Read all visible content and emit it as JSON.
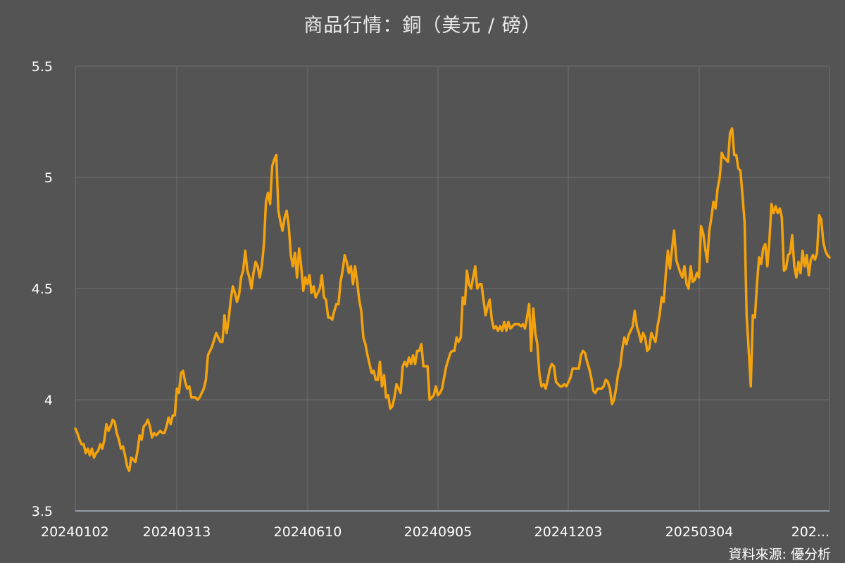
{
  "title": "商品行情：銅（美元 / 磅）",
  "source_label": "資料來源: 優分析",
  "colors": {
    "background": "#545454",
    "line": "#f5a30c",
    "grid": "#6e6e6e",
    "axis": "#a9b4c2",
    "text": "#ffffff"
  },
  "chart_data": {
    "type": "line",
    "title": "商品行情：銅（美元 / 磅）",
    "xlabel": "",
    "ylabel": "",
    "ylim": [
      3.5,
      5.5
    ],
    "yticks": [
      "3.5",
      "4",
      "4.5",
      "5",
      "5.5"
    ],
    "xtick_labels": [
      "20240102",
      "20240313",
      "20240610",
      "20240905",
      "20241203",
      "20250304",
      "202..."
    ],
    "grid": true,
    "series": [
      {
        "values": [
          3.87,
          3.85,
          3.82,
          3.8,
          3.8,
          3.76,
          3.78,
          3.75,
          3.78,
          3.74,
          3.76,
          3.77,
          3.8,
          3.78,
          3.82,
          3.89,
          3.86,
          3.88,
          3.91,
          3.9,
          3.85,
          3.82,
          3.78,
          3.79,
          3.75,
          3.7,
          3.68,
          3.74,
          3.73,
          3.72,
          3.77,
          3.84,
          3.82,
          3.88,
          3.89,
          3.91,
          3.88,
          3.83,
          3.85,
          3.84,
          3.85,
          3.86,
          3.85,
          3.85,
          3.88,
          3.92,
          3.89,
          3.93,
          3.93,
          4.05,
          4.03,
          4.12,
          4.13,
          4.08,
          4.05,
          4.06,
          4.01,
          4.01,
          4.01,
          4.0,
          4.01,
          4.03,
          4.05,
          4.09,
          4.2,
          4.22,
          4.24,
          4.27,
          4.3,
          4.28,
          4.26,
          4.26,
          4.38,
          4.3,
          4.36,
          4.45,
          4.51,
          4.48,
          4.44,
          4.47,
          4.55,
          4.58,
          4.67,
          4.58,
          4.55,
          4.5,
          4.57,
          4.62,
          4.6,
          4.55,
          4.6,
          4.7,
          4.89,
          4.93,
          4.88,
          5.05,
          5.08,
          5.1,
          4.85,
          4.8,
          4.76,
          4.82,
          4.85,
          4.78,
          4.65,
          4.6,
          4.66,
          4.55,
          4.68,
          4.6,
          4.49,
          4.55,
          4.52,
          4.56,
          4.48,
          4.51,
          4.46,
          4.48,
          4.5,
          4.56,
          4.46,
          4.45,
          4.37,
          4.37,
          4.36,
          4.4,
          4.43,
          4.43,
          4.53,
          4.58,
          4.65,
          4.62,
          4.57,
          4.6,
          4.52,
          4.6,
          4.53,
          4.45,
          4.4,
          4.28,
          4.25,
          4.2,
          4.16,
          4.12,
          4.13,
          4.09,
          4.09,
          4.17,
          4.06,
          4.11,
          4.01,
          4.02,
          3.96,
          3.97,
          4.01,
          4.07,
          4.05,
          4.03,
          4.15,
          4.17,
          4.15,
          4.19,
          4.16,
          4.2,
          4.16,
          4.22,
          4.22,
          4.25,
          4.15,
          4.15,
          4.15,
          4.0,
          4.01,
          4.02,
          4.06,
          4.02,
          4.03,
          4.05,
          4.1,
          4.15,
          4.18,
          4.21,
          4.22,
          4.22,
          4.28,
          4.26,
          4.28,
          4.46,
          4.43,
          4.58,
          4.52,
          4.5,
          4.55,
          4.6,
          4.5,
          4.52,
          4.52,
          4.45,
          4.38,
          4.42,
          4.45,
          4.36,
          4.32,
          4.33,
          4.31,
          4.33,
          4.31,
          4.35,
          4.31,
          4.35,
          4.32,
          4.33,
          4.34,
          4.34,
          4.34,
          4.33,
          4.34,
          4.32,
          4.37,
          4.43,
          4.22,
          4.41,
          4.3,
          4.25,
          4.11,
          4.06,
          4.07,
          4.05,
          4.09,
          4.14,
          4.16,
          4.15,
          4.08,
          4.07,
          4.06,
          4.06,
          4.07,
          4.06,
          4.08,
          4.1,
          4.14,
          4.14,
          4.14,
          4.14,
          4.2,
          4.22,
          4.21,
          4.17,
          4.14,
          4.1,
          4.04,
          4.03,
          4.05,
          4.05,
          4.05,
          4.06,
          4.09,
          4.08,
          4.05,
          3.98,
          4.0,
          4.05,
          4.12,
          4.15,
          4.23,
          4.28,
          4.25,
          4.29,
          4.31,
          4.33,
          4.4,
          4.33,
          4.3,
          4.26,
          4.3,
          4.28,
          4.22,
          4.23,
          4.3,
          4.28,
          4.26,
          4.33,
          4.38,
          4.46,
          4.44,
          4.57,
          4.67,
          4.59,
          4.68,
          4.76,
          4.63,
          4.6,
          4.57,
          4.55,
          4.6,
          4.52,
          4.5,
          4.6,
          4.53,
          4.54,
          4.57,
          4.55,
          4.78,
          4.75,
          4.68,
          4.62,
          4.76,
          4.82,
          4.89,
          4.86,
          4.95,
          5.0,
          5.11,
          5.09,
          5.08,
          5.07,
          5.2,
          5.22,
          5.1,
          5.1,
          5.04,
          5.03,
          4.92,
          4.8,
          4.38,
          4.22,
          4.06,
          4.38,
          4.37,
          4.52,
          4.64,
          4.61,
          4.68,
          4.7,
          4.6,
          4.72,
          4.88,
          4.84,
          4.87,
          4.84,
          4.86,
          4.82,
          4.58,
          4.59,
          4.65,
          4.66,
          4.74,
          4.6,
          4.55,
          4.62,
          4.57,
          4.67,
          4.6,
          4.65,
          4.56,
          4.63,
          4.65,
          4.63,
          4.66,
          4.83,
          4.81,
          4.71,
          4.67,
          4.65,
          4.64
        ]
      }
    ]
  }
}
